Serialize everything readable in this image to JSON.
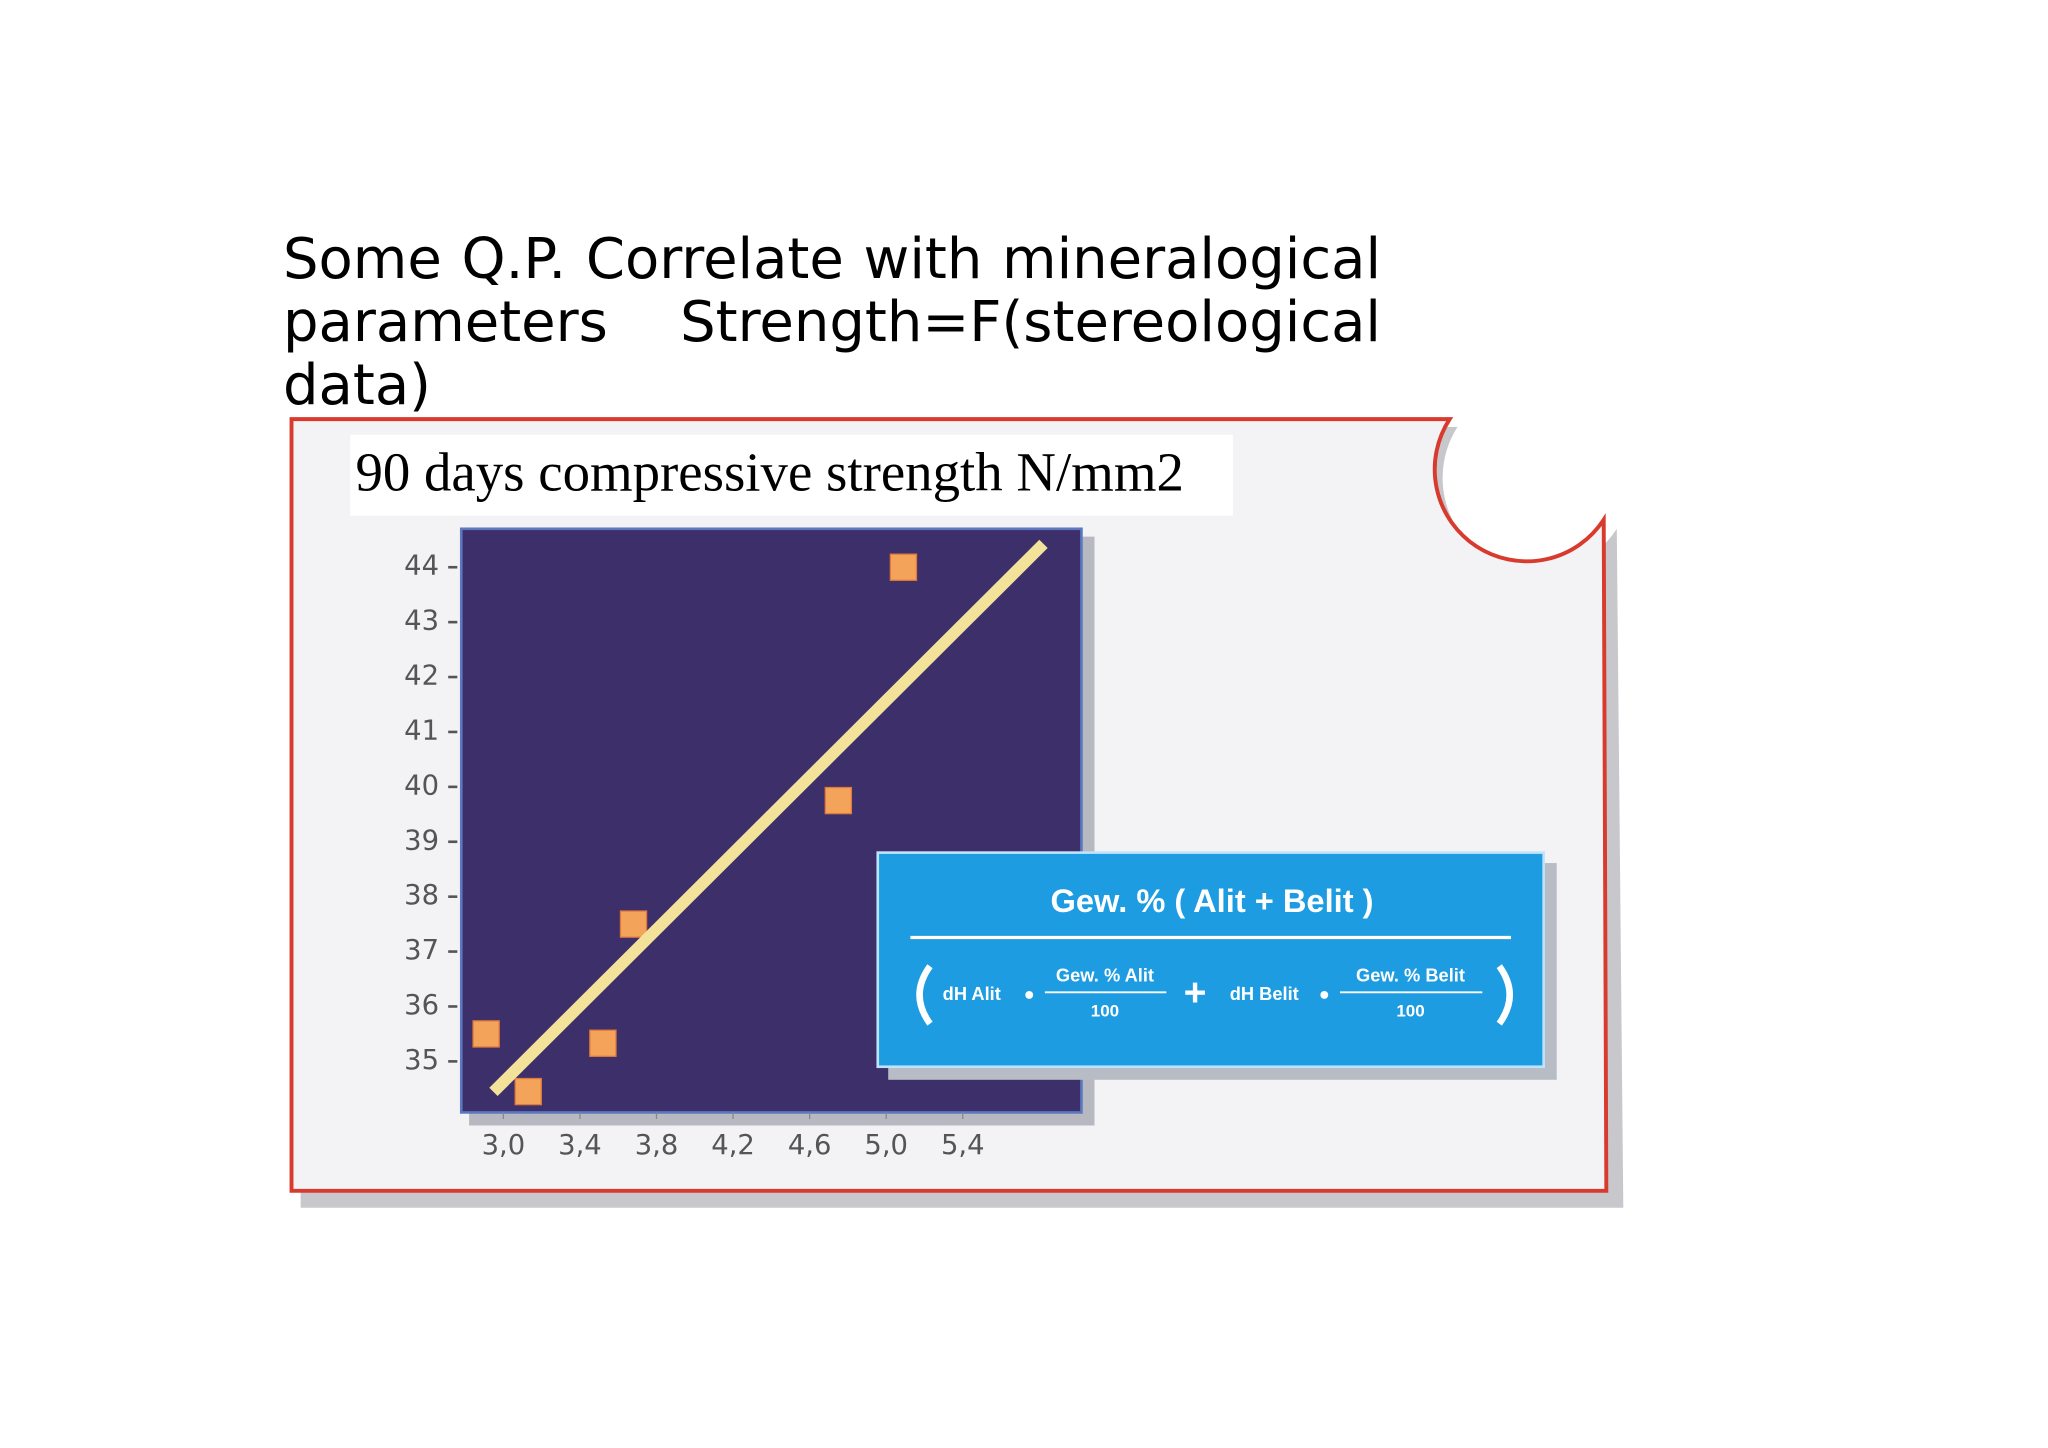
{
  "slide": {
    "heading": "Some Q.P. Correlate with mineralogical parameters Strength=F(stereological data)"
  },
  "chart_data": {
    "type": "scatter",
    "title": "90 days compressive strength N/mm2",
    "series": [
      {
        "color": "#f4a35a",
        "x": [
          2.91,
          3.13,
          3.52,
          3.68,
          4.75,
          5.09
        ],
        "values": [
          35.5,
          34.45,
          35.33,
          37.5,
          39.75,
          44.0
        ]
      }
    ],
    "trendline": {
      "color": "#f3e39a",
      "x": [
        2.97,
        5.8
      ],
      "values": [
        34.52,
        44.35
      ]
    },
    "xlim": [
      2.78,
      6.02
    ],
    "ylim": [
      34.07,
      44.7
    ],
    "xticks": [
      {
        "value": 3.0,
        "label": "3,0"
      },
      {
        "value": 3.4,
        "label": "3,4"
      },
      {
        "value": 3.8,
        "label": "3,8"
      },
      {
        "value": 4.2,
        "label": "4,2"
      },
      {
        "value": 4.6,
        "label": "4,6"
      },
      {
        "value": 5.0,
        "label": "5,0"
      },
      {
        "value": 5.4,
        "label": "5,4"
      }
    ],
    "yticks": [
      35,
      36,
      37,
      38,
      39,
      40,
      41,
      42,
      43,
      44
    ]
  },
  "formula": {
    "numerator": "Gew. % ( Alit + Belit )",
    "term1": "dH Alit",
    "term1_num": "Gew. % Alit",
    "term1_den": "100",
    "plus": "+",
    "term2": "dH Belit",
    "term2_num": "Gew. % Belit",
    "term2_den": "100"
  }
}
